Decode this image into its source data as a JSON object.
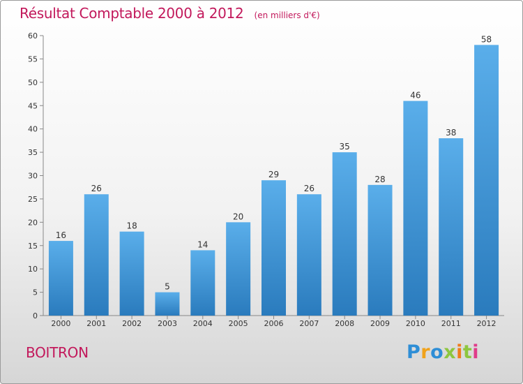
{
  "chart_data": {
    "type": "bar",
    "title": "Résultat Comptable 2000 à 2012",
    "subtitle": "(en milliers d'€)",
    "categories": [
      "2000",
      "2001",
      "2002",
      "2003",
      "2004",
      "2005",
      "2006",
      "2007",
      "2008",
      "2009",
      "2010",
      "2011",
      "2012"
    ],
    "values": [
      16,
      26,
      18,
      5,
      14,
      20,
      29,
      26,
      35,
      28,
      46,
      38,
      58
    ],
    "ylim": [
      0,
      60
    ],
    "yticks": [
      0,
      5,
      10,
      15,
      20,
      25,
      30,
      35,
      40,
      45,
      50,
      55,
      60
    ],
    "xlabel": "",
    "ylabel": "",
    "grid": false,
    "legend": "none"
  },
  "footer": {
    "place": "BOITRON",
    "logo_letters": [
      "P",
      "r",
      "o",
      "x",
      "i",
      "t",
      "i"
    ]
  },
  "colors": {
    "title": "#c2185b",
    "bar_top": "#5aaeea",
    "bar_bottom": "#2a7bbd",
    "logo": [
      "#2e8ed6",
      "#f0a21b",
      "#2e8ed6",
      "#8dc63f",
      "#f07c1b",
      "#8dc63f",
      "#e03c8a"
    ]
  }
}
